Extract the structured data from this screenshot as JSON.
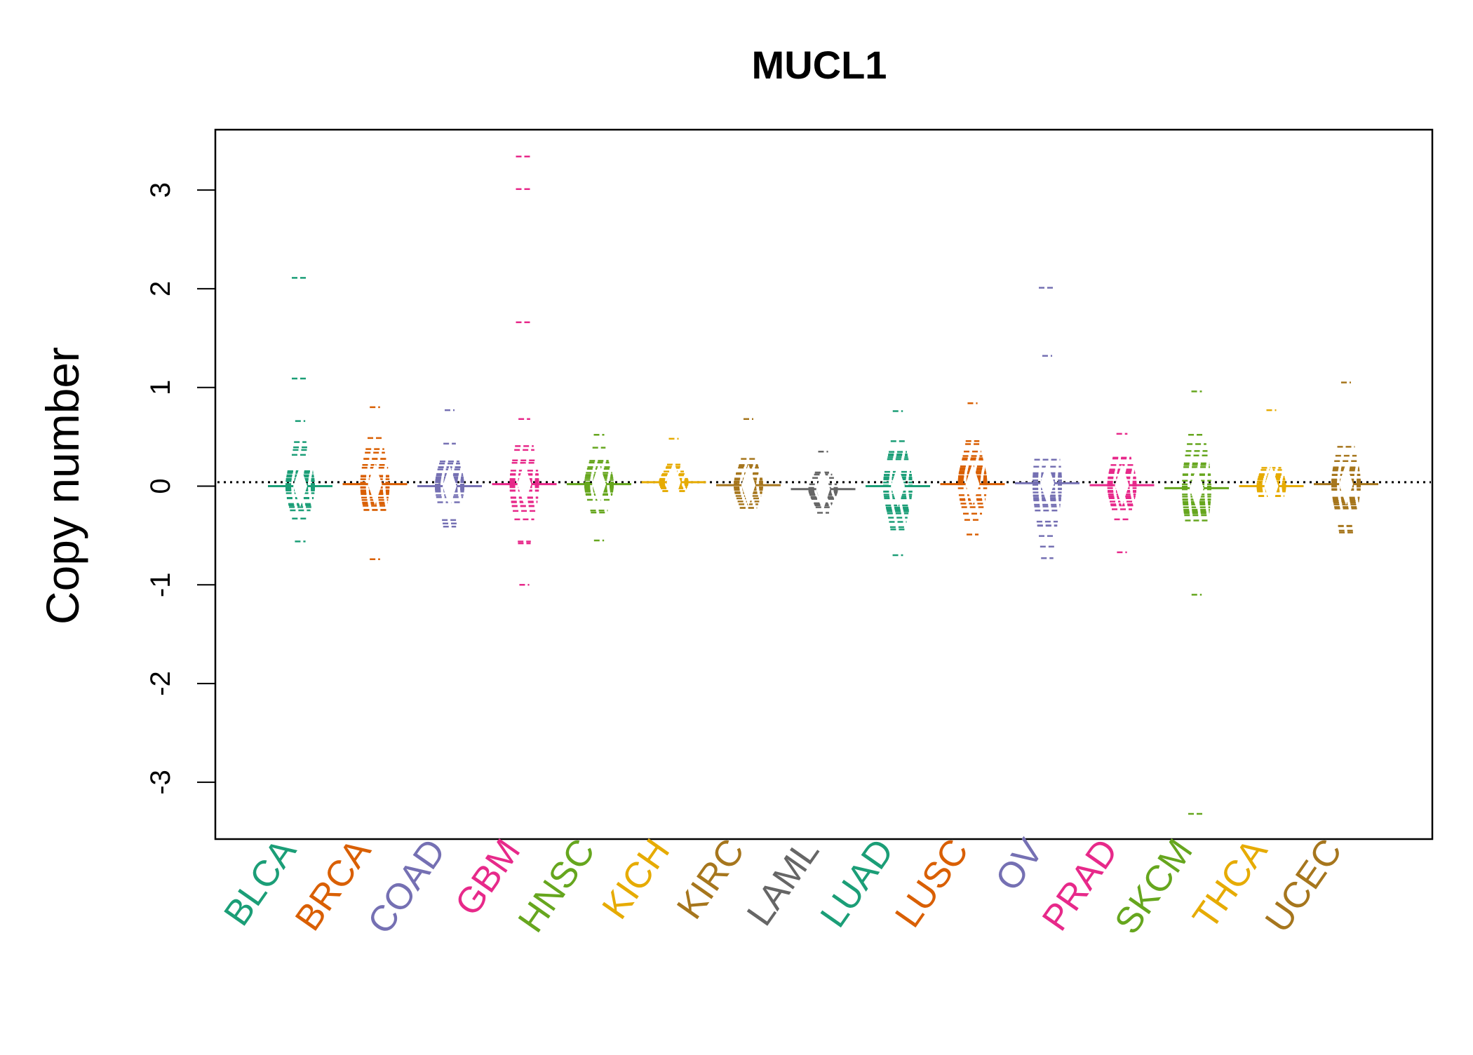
{
  "chart_data": {
    "type": "beanplot",
    "title": "MUCL1",
    "xlabel": "",
    "ylabel": "Copy number",
    "ylim": [
      -3.6,
      3.6
    ],
    "yticks": [
      -3,
      -2,
      -1,
      0,
      1,
      2,
      3
    ],
    "reference_line": 0.04,
    "grid": false,
    "legend": "none",
    "categories": [
      "BLCA",
      "BRCA",
      "COAD",
      "GBM",
      "HNSC",
      "KICH",
      "KIRC",
      "LAML",
      "LUAD",
      "LUSC",
      "OV",
      "PRAD",
      "SKCM",
      "THCA",
      "UCEC"
    ],
    "colors": [
      "#1B9E77",
      "#D95F02",
      "#7570B3",
      "#E7298A",
      "#66A61E",
      "#E6AB02",
      "#A6761D",
      "#666666",
      "#1B9E77",
      "#D95F02",
      "#7570B3",
      "#E7298A",
      "#66A61E",
      "#E6AB02",
      "#A6761D"
    ],
    "series": [
      {
        "name": "BLCA",
        "min": -0.56,
        "max": 0.66,
        "median": 0.0,
        "outliers": [
          2.11,
          1.09
        ]
      },
      {
        "name": "BRCA",
        "min": -0.74,
        "max": 0.8,
        "median": 0.02,
        "outliers": []
      },
      {
        "name": "COAD",
        "min": -0.41,
        "max": 0.77,
        "median": 0.0,
        "outliers": []
      },
      {
        "name": "GBM",
        "min": -1.0,
        "max": 0.68,
        "median": 0.02,
        "outliers": [
          3.34,
          3.01,
          1.66
        ]
      },
      {
        "name": "HNSC",
        "min": -0.55,
        "max": 0.52,
        "median": 0.02,
        "outliers": []
      },
      {
        "name": "KICH",
        "min": -0.05,
        "max": 0.48,
        "median": 0.04,
        "outliers": []
      },
      {
        "name": "KIRC",
        "min": -0.22,
        "max": 0.68,
        "median": 0.01,
        "outliers": []
      },
      {
        "name": "LAML",
        "min": -0.27,
        "max": 0.35,
        "median": -0.03,
        "outliers": []
      },
      {
        "name": "LUAD",
        "min": -0.7,
        "max": 0.76,
        "median": 0.0,
        "outliers": []
      },
      {
        "name": "LUSC",
        "min": -0.49,
        "max": 0.84,
        "median": 0.02,
        "outliers": []
      },
      {
        "name": "OV",
        "min": -0.73,
        "max": 1.32,
        "median": 0.03,
        "outliers": [
          2.01
        ]
      },
      {
        "name": "PRAD",
        "min": -0.67,
        "max": 0.53,
        "median": 0.01,
        "outliers": []
      },
      {
        "name": "SKCM",
        "min": -1.1,
        "max": 0.96,
        "median": -0.02,
        "outliers": [
          -3.32
        ]
      },
      {
        "name": "THCA",
        "min": -0.1,
        "max": 0.77,
        "median": 0.0,
        "outliers": []
      },
      {
        "name": "UCEC",
        "min": -0.47,
        "max": 1.05,
        "median": 0.02,
        "outliers": []
      }
    ]
  }
}
